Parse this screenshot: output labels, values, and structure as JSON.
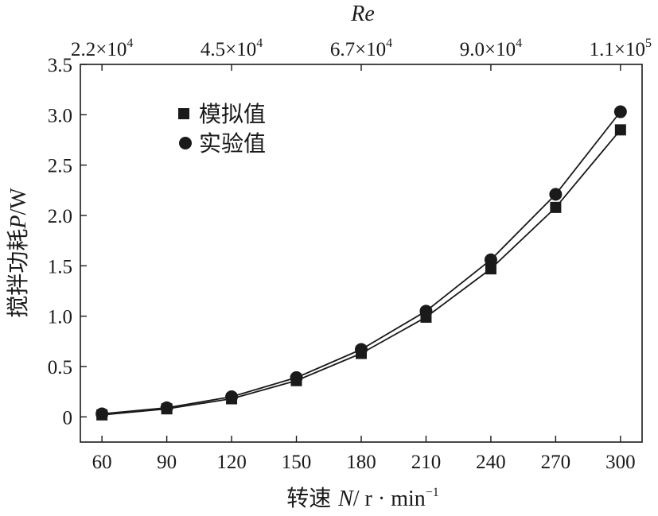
{
  "chart_data": {
    "type": "line",
    "x": [
      60,
      90,
      120,
      150,
      180,
      210,
      240,
      270,
      300
    ],
    "x_ticks": [
      "60",
      "90",
      "120",
      "150",
      "180",
      "210",
      "240",
      "270",
      "300"
    ],
    "xlim": [
      50,
      310
    ],
    "xlabel": {
      "prefix": "转速 ",
      "var": "N",
      "unit": "/ r · min",
      "sup": "−1"
    },
    "ylim": [
      -0.25,
      3.5
    ],
    "y_ticks": [
      "0",
      "0.5",
      "1.0",
      "1.5",
      "2.0",
      "2.5",
      "3.0",
      "3.5"
    ],
    "y_tick_values": [
      0,
      0.5,
      1.0,
      1.5,
      2.0,
      2.5,
      3.0,
      3.5
    ],
    "ylabel": {
      "prefix": "搅拌功耗",
      "var": "P",
      "unit": "/W"
    },
    "top_axis": {
      "label": "Re",
      "ticks": [
        {
          "mantissa": "2.2×10",
          "exp": "4"
        },
        {
          "mantissa": "4.5×10",
          "exp": "4"
        },
        {
          "mantissa": "6.7×10",
          "exp": "4"
        },
        {
          "mantissa": "9.0×10",
          "exp": "4"
        },
        {
          "mantissa": "1.1×10",
          "exp": "5"
        }
      ],
      "tick_x": [
        60,
        120,
        180,
        240,
        300
      ]
    },
    "series": [
      {
        "name": "模拟值",
        "marker": "square",
        "values": [
          0.02,
          0.08,
          0.18,
          0.36,
          0.63,
          0.99,
          1.47,
          2.08,
          2.85
        ]
      },
      {
        "name": "实验值",
        "marker": "circle",
        "values": [
          0.03,
          0.09,
          0.2,
          0.39,
          0.67,
          1.05,
          1.56,
          2.21,
          3.03
        ]
      }
    ],
    "legend_position": "top-left",
    "grid": false,
    "colors": {
      "line": "#1a1a1a",
      "marker": "#1a1a1a"
    }
  }
}
